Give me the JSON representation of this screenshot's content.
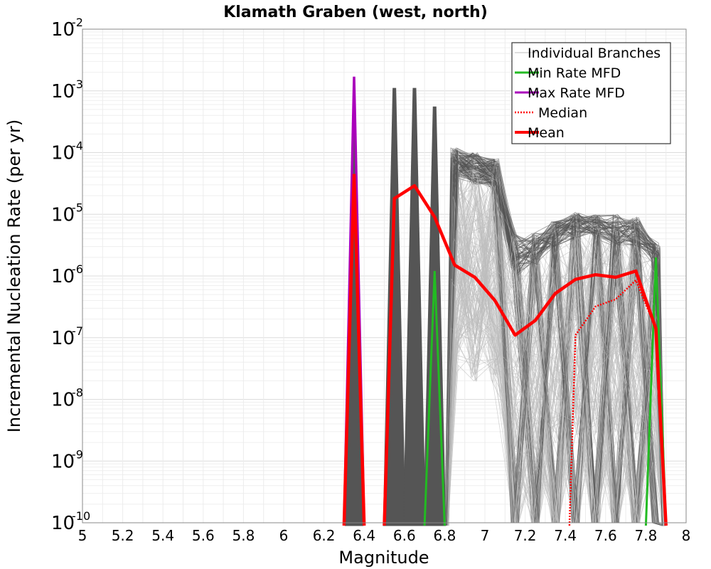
{
  "chart_data": {
    "type": "line",
    "title": "Klamath Graben (west, north)",
    "xlabel": "Magnitude",
    "ylabel": "Incremental Nucleation Rate (per yr)",
    "xlim": [
      5,
      8
    ],
    "ylim": [
      1e-10,
      0.01
    ],
    "yscale": "log",
    "grid": true,
    "legend_position": "top-right",
    "x_ticks": [
      "5",
      "5.2",
      "5.4",
      "5.6",
      "5.8",
      "6",
      "6.2",
      "6.4",
      "6.6",
      "6.8",
      "7",
      "7.2",
      "7.4",
      "7.6",
      "7.8",
      "8"
    ],
    "y_tick_exponents": [
      "-10",
      "-9",
      "-8",
      "-7",
      "-6",
      "-5",
      "-4",
      "-3",
      "-2"
    ],
    "y_tick_base": "10",
    "colors": {
      "branches_light": "#bdbdbd",
      "branches_dark": "#555555",
      "min": "#22bb22",
      "max": "#aa00bb",
      "median": "#ff0000",
      "mean": "#ff0000"
    },
    "series": [
      {
        "name": "Mean",
        "x": [
          6.35,
          6.55,
          6.65,
          6.75,
          6.85,
          6.95,
          7.05,
          7.15,
          7.25,
          7.35,
          7.45,
          7.55,
          7.65,
          7.75,
          7.85
        ],
        "values": [
          4.5e-05,
          1.8e-05,
          2.9e-05,
          9e-06,
          1.5e-06,
          9.5e-07,
          4e-07,
          1.1e-07,
          1.9e-07,
          5.2e-07,
          8.8e-07,
          1.05e-06,
          9.5e-07,
          1.2e-06,
          1.4e-07
        ]
      },
      {
        "name": "Median",
        "x": [
          7.45,
          7.55,
          7.65,
          7.75,
          7.85
        ],
        "values": [
          1.1e-07,
          3.2e-07,
          4.2e-07,
          8.5e-07,
          1.4e-07
        ]
      },
      {
        "name": "Min Rate MFD",
        "x": [
          6.75,
          7.85
        ],
        "values": [
          1.2e-06,
          2e-06
        ]
      },
      {
        "name": "Max Rate MFD",
        "x": [
          6.35
        ],
        "values": [
          0.0017
        ]
      },
      {
        "name": "Individual Branches",
        "spikes": [
          {
            "x": 6.55,
            "peak": 0.0011
          },
          {
            "x": 6.65,
            "peak": 0.0011
          },
          {
            "x": 6.75,
            "peak": 0.00055
          }
        ],
        "band_high": {
          "x": [
            6.85,
            6.95,
            7.05,
            7.15,
            7.25,
            7.35,
            7.45,
            7.55,
            7.65,
            7.75,
            7.85
          ],
          "values": [
            0.00012,
            0.0001,
            8e-05,
            5e-06,
            5e-06,
            8e-06,
            1.1e-05,
            1e-05,
            1e-05,
            9e-06,
            3.5e-06
          ]
        },
        "band_core": {
          "x": [
            6.85,
            6.95,
            7.05,
            7.15,
            7.25,
            7.35,
            7.45,
            7.55,
            7.65,
            7.75,
            7.85
          ],
          "values": [
            4e-05,
            3e-05,
            2.5e-05,
            1e-06,
            1.5e-06,
            3e-06,
            4e-06,
            4e-06,
            3e-06,
            3e-06,
            1.5e-06
          ]
        }
      }
    ],
    "legend": [
      {
        "label": "Individual Branches",
        "style": "branches"
      },
      {
        "label": "Min Rate MFD",
        "style": "min"
      },
      {
        "label": "Max Rate MFD",
        "style": "max"
      },
      {
        "label": "Median",
        "style": "median"
      },
      {
        "label": "Mean",
        "style": "mean"
      }
    ]
  }
}
